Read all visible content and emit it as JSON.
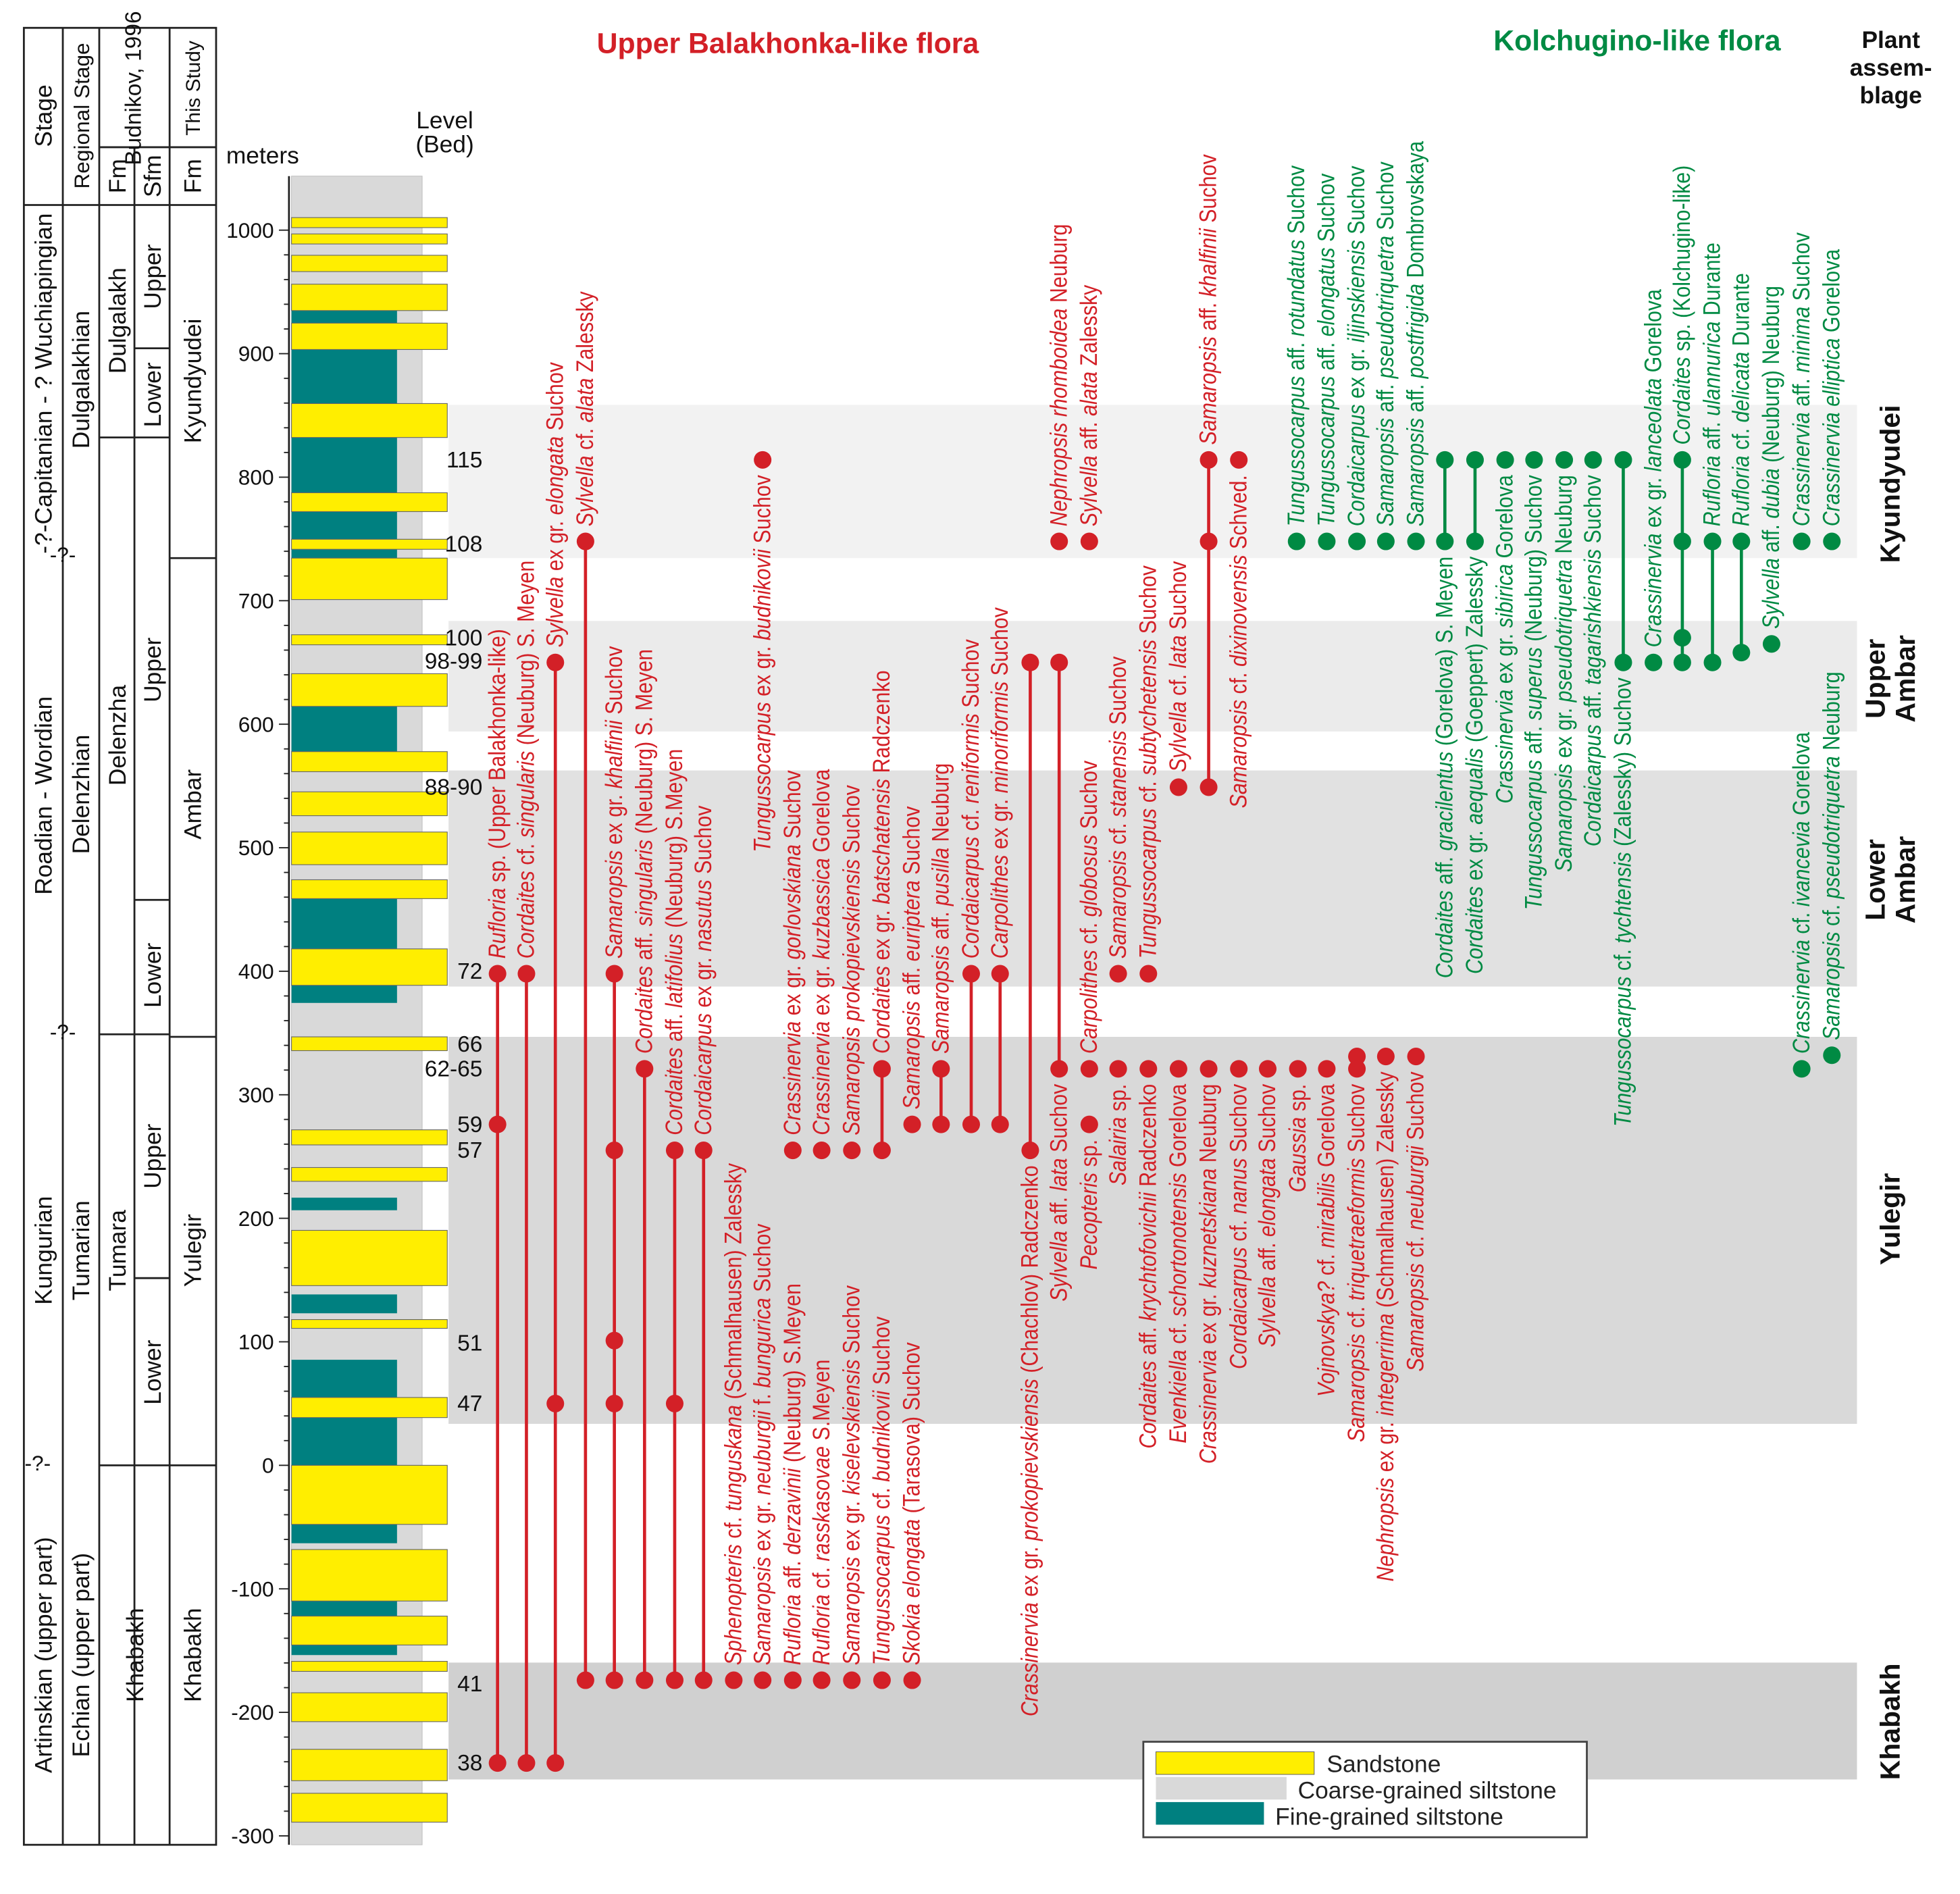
{
  "titles": {
    "upper_balakhonka": "Upper Balakhonka-like flora",
    "kolchugino": "Kolchugino-like flora",
    "plant_assemblage": [
      "Plant",
      "assem-",
      "blage"
    ]
  },
  "colors": {
    "red": "#d32027",
    "green": "#008a43",
    "sandstone": "#ffee00",
    "coarse_siltstone": "#d9d9d9",
    "fine_siltstone": "#008080"
  },
  "columns": {
    "stage": "Stage",
    "regional_stage": "Regional Stage",
    "budnikov": "Budnikov, 1996",
    "budnikov_fm": "Fm",
    "budnikov_sfm": "Sfm",
    "this_study": "This Study",
    "this_study_fm": "Fm",
    "meters": "meters",
    "level_bed": [
      "Level",
      "(Bed)"
    ]
  },
  "stages": [
    "-?-Capitanian - ? Wuchiapingian",
    "Roadian - Wordian",
    "Kungurian",
    "Artinskian (upper part)"
  ],
  "uncertain_mark": "-?-",
  "regional_stages": [
    "Dulgalakhian",
    "Delenzhian",
    "Tumarian",
    "Echian (upper part)"
  ],
  "budnikov_formations": [
    "Dulgalakh",
    "Delenzha",
    "Tumara",
    "Khabakh"
  ],
  "budnikov_subformations": [
    "Upper",
    "Lower",
    "Upper",
    "Lower",
    "Upper",
    "Lower"
  ],
  "this_study_formations": [
    "Kyundyudei",
    "Ambar",
    "Yulegir",
    "Khabakh"
  ],
  "depth_axis": {
    "ticks": [
      1000,
      900,
      800,
      700,
      600,
      500,
      400,
      300,
      200,
      100,
      0,
      -100,
      -200,
      -300
    ]
  },
  "beds": [
    {
      "label": "115",
      "level": 814
    },
    {
      "label": "108",
      "level": 746
    },
    {
      "label": "100",
      "level": 670
    },
    {
      "label": "98-99",
      "level": 651
    },
    {
      "label": "88-90",
      "level": 549
    },
    {
      "label": "72",
      "level": 400
    },
    {
      "label": "66",
      "level": 341
    },
    {
      "label": "62-65",
      "level": 321
    },
    {
      "label": "59",
      "level": 276
    },
    {
      "label": "57",
      "level": 255
    },
    {
      "label": "51",
      "level": 99
    },
    {
      "label": "47",
      "level": 50
    },
    {
      "label": "41",
      "level": -177
    },
    {
      "label": "38",
      "level": -241
    }
  ],
  "assemblages": [
    "Kyundyudei",
    "Upper Ambar",
    "Lower Ambar",
    "Yulegir",
    "Khabakh"
  ],
  "legend": [
    "Sandstone",
    "Coarse-grained siltstone",
    "Fine-grained siltstone"
  ],
  "red_taxa": [
    {
      "name": "Rufloria sp. (Upper Balakhonka-like)",
      "levels": [
        398,
        276,
        -241
      ]
    },
    {
      "name": "Cordaites cf. singularis (Neuburg) S. Meyen",
      "levels": [
        398,
        -241
      ]
    },
    {
      "name": "Sylvella ex gr. elongata Suchov",
      "levels": [
        650,
        50,
        -241
      ]
    },
    {
      "name": "Sylvella cf. alata Zalessky",
      "levels": [
        748,
        -174
      ]
    },
    {
      "name": "Samaropsis ex gr. khalfinii Suchov",
      "levels": [
        398,
        255,
        101,
        50,
        -174
      ]
    },
    {
      "name": "Cordaites aff. singularis (Neuburg) S. Meyen",
      "levels": [
        321,
        -174
      ]
    },
    {
      "name": "Cordaites aff. latifolius (Neuburg) S.Meyen",
      "levels": [
        255,
        50,
        -174
      ]
    },
    {
      "name": "Cordaicarpus ex gr. nasutus Suchov",
      "levels": [
        255,
        -174
      ]
    },
    {
      "name": "Sphenopteris cf. tunguskana (Schmalhausen) Zalessky",
      "levels": [
        -174
      ]
    },
    {
      "name": "Samaropsis ex gr. neuburgii f. bungurica Suchov",
      "levels": [
        -174
      ]
    },
    {
      "name": "Tungussocarpus ex gr. budnikovii Suchov",
      "levels": [
        814
      ]
    },
    {
      "name": "Crassinervia ex gr. gorlovskiana Suchov",
      "levels": [
        255
      ]
    },
    {
      "name": "Rufloria aff. derzavinii (Neuburg) S.Meyen",
      "levels": [
        -174
      ]
    },
    {
      "name": "Crassinervia ex gr. kuzbassica Gorelova",
      "levels": [
        255
      ]
    },
    {
      "name": "Rufloria cf. rasskasovae S.Meyen",
      "levels": [
        -174
      ]
    },
    {
      "name": "Samaropsis prokopievskiensis Suchov",
      "levels": [
        255
      ]
    },
    {
      "name": "Samaropsis ex gr. kiselevskiensis Suchov",
      "levels": [
        -174
      ]
    },
    {
      "name": "Cordaites ex gr. batschatensis Radczenko",
      "levels": [
        321,
        255
      ]
    },
    {
      "name": "Tungussocarpus cf. budnikovii Suchov",
      "levels": [
        -174
      ]
    },
    {
      "name": "Samaropsis aff. euriptera Suchov",
      "levels": [
        276
      ]
    },
    {
      "name": "Skokia elongata (Tarasova) Suchov",
      "levels": [
        -174
      ]
    },
    {
      "name": "Samaropsis aff. pusilla Neuburg",
      "levels": [
        321,
        276
      ]
    },
    {
      "name": "Cordaicarpus cf. reniformis Suchov",
      "levels": [
        398,
        276
      ]
    },
    {
      "name": "Carpolithes ex gr. minoriformis Suchov",
      "levels": [
        398,
        276
      ]
    },
    {
      "name": "Crassinervia ex gr. prokopievskiensis (Chachlov) Radczenko",
      "levels": [
        650,
        255
      ]
    },
    {
      "name": "Sylvella aff. lata Suchov",
      "levels": [
        650,
        321
      ]
    },
    {
      "name": "Nephropsis rhomboidea Neuburg",
      "levels": [
        748
      ]
    },
    {
      "name": "Sylvella aff. alata Zalessky",
      "levels": [
        748
      ]
    },
    {
      "name": "Carpolithes cf. globosus Suchov",
      "levels": [
        321
      ]
    },
    {
      "name": "Pecopteris sp.",
      "levels": [
        276
      ]
    },
    {
      "name": "Samaropsis cf. stanensis Suchov",
      "levels": [
        398
      ]
    },
    {
      "name": "Salairia sp.",
      "levels": [
        321
      ]
    },
    {
      "name": "Tungussocarpus cf. subtychetensis Suchov",
      "levels": [
        398
      ]
    },
    {
      "name": "Cordaites aff. krychtofovichii Radczenko",
      "levels": [
        321
      ]
    },
    {
      "name": "Sylvella cf. lata Suchov",
      "levels": [
        549
      ]
    },
    {
      "name": "Evenkiella cf. schortonotensis Gorelova",
      "levels": [
        321
      ]
    },
    {
      "name": "Samaropsis aff. khalfinii Suchov",
      "levels": [
        814,
        748,
        549
      ]
    },
    {
      "name": "Crassinervia ex gr. kuznetskiana Neuburg",
      "levels": [
        321
      ]
    },
    {
      "name": "Samaropsis cf. dixinovensis Schved.",
      "levels": [
        814
      ]
    },
    {
      "name": "Cordaicarpus cf. nanus Suchov",
      "levels": [
        321
      ]
    },
    {
      "name": "Sylvella aff. elongata Suchov",
      "levels": [
        321
      ]
    },
    {
      "name": "Gaussia sp.",
      "levels": [
        321
      ]
    },
    {
      "name": "Vojnovskya? cf. mirabilis Gorelova",
      "levels": [
        321
      ]
    },
    {
      "name": "Samaropsis cf. triquetraeformis Suchov",
      "levels": [
        331,
        321
      ]
    },
    {
      "name": "Nephropsis ex gr. integerrima (Schmalhausen) Zalessky",
      "levels": [
        331
      ]
    },
    {
      "name": "Samaropsis cf. neuburgii Suchov",
      "levels": [
        331
      ]
    }
  ],
  "green_taxa": [
    {
      "name": "Tungussocarpus aff. rotundatus Suchov",
      "levels": [
        748
      ]
    },
    {
      "name": "Tungussocarpus aff. elongatus Suchov",
      "levels": [
        748
      ]
    },
    {
      "name": "Cordaicarpus ex gr. iljinskiensis Suchov",
      "levels": [
        748
      ]
    },
    {
      "name": "Samaropsis aff. pseudotriquetra Suchov",
      "levels": [
        748
      ]
    },
    {
      "name": "Samaropsis aff. postfrigida Dombrovskaya",
      "levels": [
        748
      ]
    },
    {
      "name": "Cordaites aff. gracilentus (Gorelova) S. Meyen",
      "levels": [
        814,
        748
      ]
    },
    {
      "name": "Cordaites ex gr. aequalis (Goeppert) Zalessky",
      "levels": [
        814,
        748
      ]
    },
    {
      "name": "Crassinervia ex gr. sibirica Gorelova",
      "levels": [
        814
      ]
    },
    {
      "name": "Tungussocarpus aff. superus (Neuburg) Suchov",
      "levels": [
        814
      ]
    },
    {
      "name": "Samaropsis ex gr. pseudotriquetra Neuburg",
      "levels": [
        814
      ]
    },
    {
      "name": "Cordaicarpus aff. tagarishkiensis Suchov",
      "levels": [
        814
      ]
    },
    {
      "name": "Tungussocarpus cf. tychtensis (Zalessky) Suchov",
      "levels": [
        814,
        650
      ]
    },
    {
      "name": "Crassinervia ex gr. lanceolata Gorelova",
      "levels": [
        650
      ]
    },
    {
      "name": "Cordaites sp. (Kolchugino-like)",
      "levels": [
        814,
        748,
        670,
        650
      ]
    },
    {
      "name": "Rufloria aff. ulannurica Durante",
      "levels": [
        748,
        650
      ]
    },
    {
      "name": "Rufloria cf. delicata Durante",
      "levels": [
        748,
        658
      ]
    },
    {
      "name": "Sylvella aff. dubia (Neuburg) Neuburg",
      "levels": [
        665
      ]
    },
    {
      "name": "Crassinervia aff. minima Suchov",
      "levels": [
        748
      ]
    },
    {
      "name": "Crassinervia elliptica Gorelova",
      "levels": [
        748
      ]
    },
    {
      "name": "Crassinervia cf. ivancevia Gorelova",
      "levels": [
        321
      ]
    },
    {
      "name": "Samaropsis cf. pseudotriquetra Neuburg",
      "levels": [
        332
      ]
    }
  ]
}
